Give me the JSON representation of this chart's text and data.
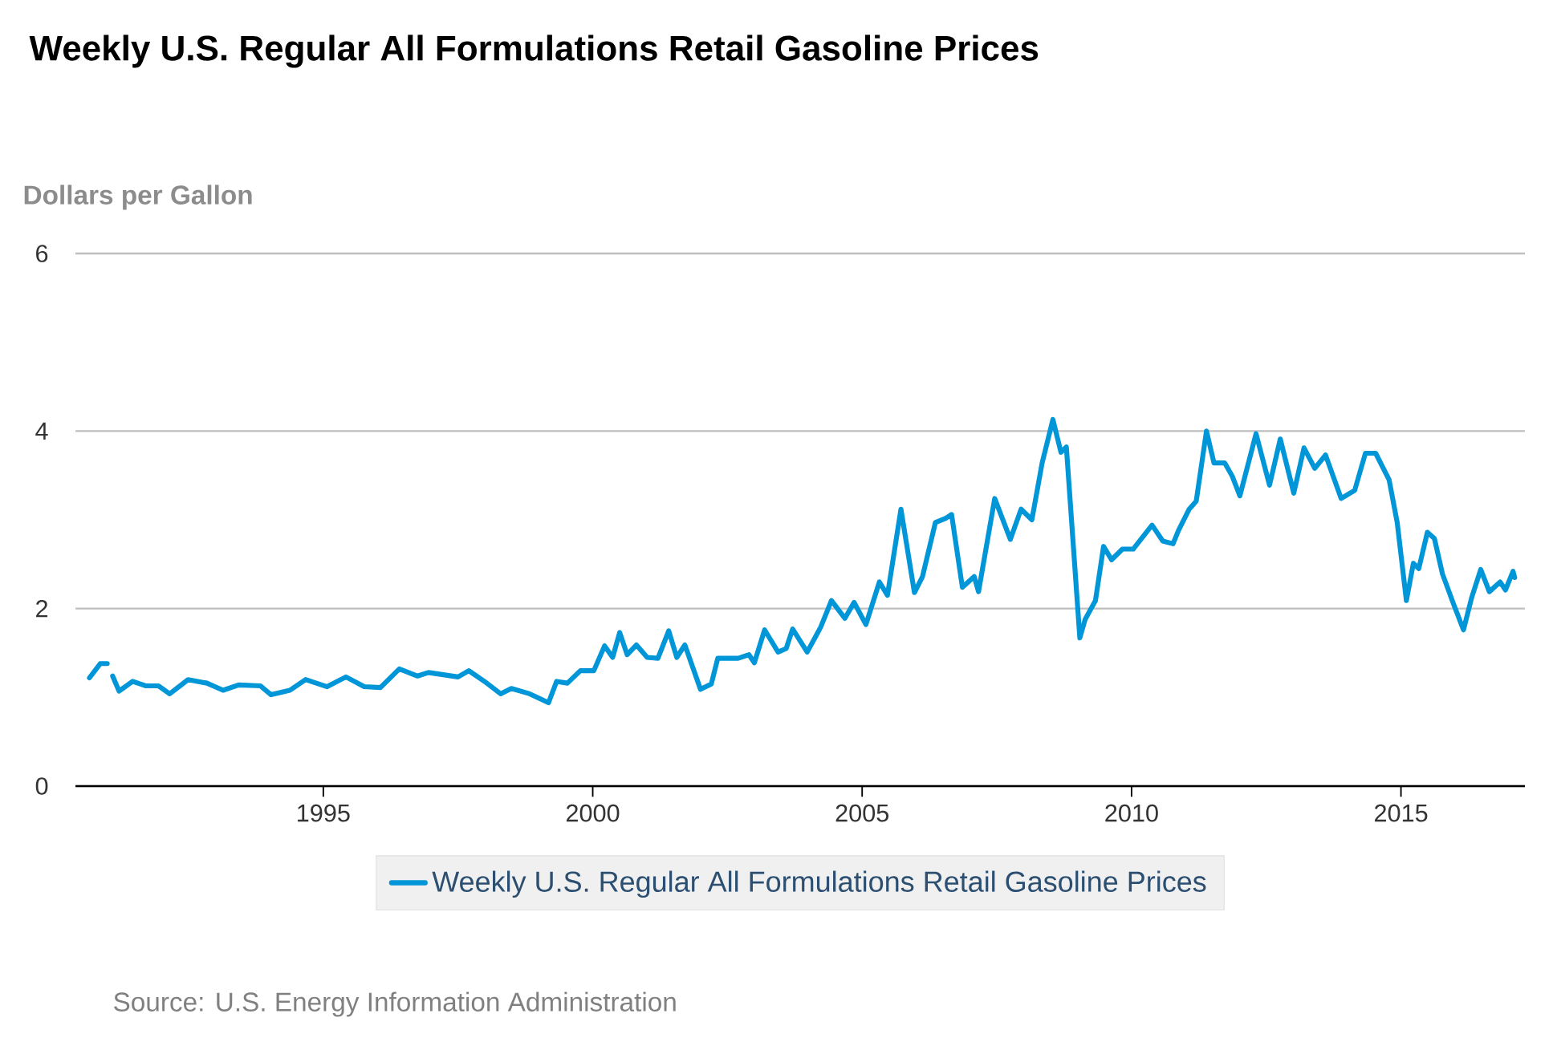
{
  "chart_data": {
    "type": "line",
    "title": "Weekly U.S. Regular All Formulations Retail Gasoline Prices",
    "ylabel": "Dollars per Gallon",
    "annotations": [
      "Source: U.S. Energy Information Administration"
    ],
    "xlim": [
      1990.4,
      2017.3
    ],
    "xticks": [
      1995,
      2000,
      2005,
      2010,
      2015
    ],
    "ylim": [
      0,
      6
    ],
    "yticks": [
      0,
      2,
      4,
      6
    ],
    "grid": "y",
    "legend": "bottom",
    "x": [
      1990.66,
      1990.86,
      1990.99,
      1991.03,
      1991.09,
      1991.21,
      1991.46,
      1991.7,
      1991.94,
      1992.15,
      1992.49,
      1992.84,
      1993.14,
      1993.43,
      1993.83,
      1994.03,
      1994.38,
      1994.67,
      1995.07,
      1995.42,
      1995.76,
      1996.06,
      1996.41,
      1996.75,
      1996.95,
      1997.5,
      1997.7,
      1997.99,
      1998.29,
      1998.49,
      1998.83,
      1999.18,
      1999.33,
      1999.53,
      1999.77,
      2000.02,
      2000.22,
      2000.37,
      2000.5,
      2000.64,
      2000.81,
      2001.01,
      2001.21,
      2001.41,
      2001.56,
      2001.71,
      2002.0,
      2002.2,
      2002.32,
      2002.7,
      2002.9,
      2003.0,
      2003.19,
      2003.44,
      2003.59,
      2003.71,
      2003.98,
      2004.23,
      2004.43,
      2004.68,
      2004.85,
      2005.07,
      2005.32,
      2005.47,
      2005.72,
      2005.97,
      2006.12,
      2006.36,
      2006.56,
      2006.66,
      2006.86,
      2007.08,
      2007.16,
      2007.46,
      2007.75,
      2007.95,
      2008.15,
      2008.34,
      2008.54,
      2008.69,
      2008.79,
      2009.04,
      2009.14,
      2009.33,
      2009.48,
      2009.63,
      2009.83,
      2010.03,
      2010.38,
      2010.58,
      2010.77,
      2010.87,
      2011.07,
      2011.2,
      2011.39,
      2011.53,
      2011.73,
      2011.87,
      2012.01,
      2012.31,
      2012.56,
      2012.76,
      2013.01,
      2013.2,
      2013.4,
      2013.6,
      2013.89,
      2014.14,
      2014.34,
      2014.53,
      2014.78,
      2014.93,
      2015.1,
      2015.23,
      2015.33,
      2015.49,
      2015.62,
      2015.77,
      2015.97,
      2016.16,
      2016.31,
      2016.48,
      2016.64,
      2016.84,
      2016.94,
      2017.08,
      2017.11
    ],
    "series": [
      {
        "name": "Weekly U.S. Regular All Formulations Retail Gasoline Prices",
        "color": "#0096d7",
        "values": [
          1.22,
          1.38,
          1.38,
          null,
          1.24,
          1.07,
          1.18,
          1.13,
          1.13,
          1.04,
          1.2,
          1.16,
          1.08,
          1.14,
          1.13,
          1.03,
          1.08,
          1.2,
          1.12,
          1.23,
          1.12,
          1.11,
          1.32,
          1.24,
          1.28,
          1.23,
          1.3,
          1.18,
          1.04,
          1.1,
          1.04,
          0.94,
          1.18,
          1.16,
          1.3,
          1.3,
          1.58,
          1.45,
          1.73,
          1.48,
          1.59,
          1.45,
          1.44,
          1.75,
          1.45,
          1.59,
          1.09,
          1.15,
          1.44,
          1.44,
          1.48,
          1.39,
          1.76,
          1.51,
          1.55,
          1.77,
          1.51,
          1.79,
          2.09,
          1.89,
          2.07,
          1.82,
          2.3,
          2.15,
          3.12,
          2.18,
          2.36,
          2.97,
          3.02,
          3.06,
          2.24,
          2.36,
          2.19,
          3.24,
          2.78,
          3.12,
          3.0,
          3.64,
          4.13,
          3.76,
          3.82,
          1.67,
          1.88,
          2.09,
          2.7,
          2.55,
          2.67,
          2.67,
          2.94,
          2.76,
          2.73,
          2.88,
          3.12,
          3.21,
          4.0,
          3.64,
          3.64,
          3.49,
          3.27,
          3.97,
          3.39,
          3.91,
          3.3,
          3.81,
          3.58,
          3.73,
          3.24,
          3.33,
          3.75,
          3.75,
          3.45,
          2.97,
          2.09,
          2.51,
          2.45,
          2.86,
          2.79,
          2.39,
          2.06,
          1.76,
          2.12,
          2.44,
          2.19,
          2.3,
          2.21,
          2.42,
          2.35
        ]
      }
    ]
  }
}
